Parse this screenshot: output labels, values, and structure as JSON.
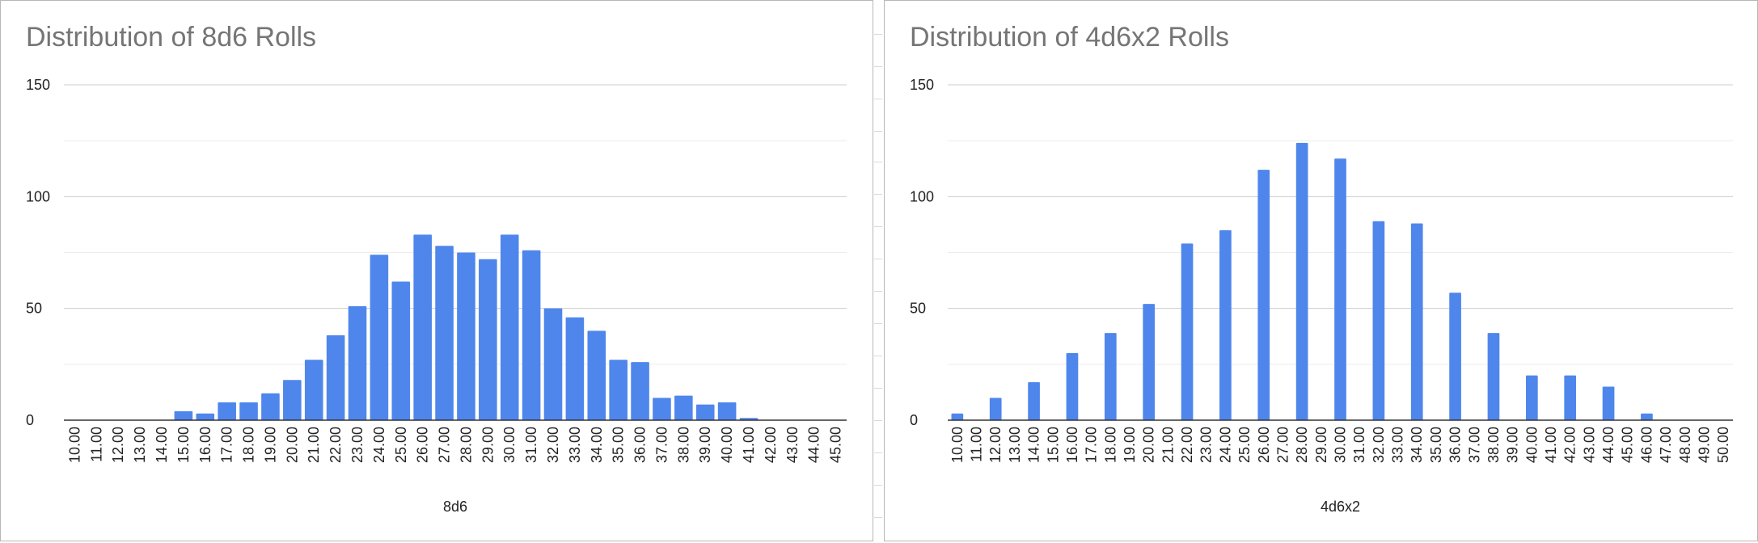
{
  "chart_data": [
    {
      "type": "bar",
      "title": "Distribution of 8d6 Rolls",
      "xlabel": "8d6",
      "ylabel": "",
      "ylim": [
        0,
        150
      ],
      "y_major_ticks": [
        "0",
        "50",
        "100",
        "150"
      ],
      "y_minor_gridlines": [
        25,
        75,
        125
      ],
      "grid": true,
      "legend": "none",
      "bar_color": "#4f86ec",
      "categories": [
        "10.00",
        "11.00",
        "12.00",
        "13.00",
        "14.00",
        "15.00",
        "16.00",
        "17.00",
        "18.00",
        "19.00",
        "20.00",
        "21.00",
        "22.00",
        "23.00",
        "24.00",
        "25.00",
        "26.00",
        "27.00",
        "28.00",
        "29.00",
        "30.00",
        "31.00",
        "32.00",
        "33.00",
        "34.00",
        "35.00",
        "36.00",
        "37.00",
        "38.00",
        "39.00",
        "40.00",
        "41.00",
        "42.00",
        "43.00",
        "44.00",
        "45.00"
      ],
      "values": [
        0,
        0,
        0,
        0,
        0,
        4,
        3,
        8,
        8,
        12,
        18,
        27,
        38,
        51,
        74,
        62,
        83,
        78,
        75,
        72,
        83,
        76,
        50,
        46,
        40,
        27,
        26,
        10,
        11,
        7,
        8,
        1,
        0,
        0,
        0,
        0
      ]
    },
    {
      "type": "bar",
      "title": "Distribution of 4d6x2 Rolls",
      "xlabel": "4d6x2",
      "ylabel": "",
      "ylim": [
        0,
        150
      ],
      "y_major_ticks": [
        "0",
        "50",
        "100",
        "150"
      ],
      "y_minor_gridlines": [
        25,
        75,
        125
      ],
      "grid": true,
      "legend": "none",
      "bar_color": "#4f86ec",
      "categories": [
        "10.00",
        "11.00",
        "12.00",
        "13.00",
        "14.00",
        "15.00",
        "16.00",
        "17.00",
        "18.00",
        "19.00",
        "20.00",
        "21.00",
        "22.00",
        "23.00",
        "24.00",
        "25.00",
        "26.00",
        "27.00",
        "28.00",
        "29.00",
        "30.00",
        "31.00",
        "32.00",
        "33.00",
        "34.00",
        "35.00",
        "36.00",
        "37.00",
        "38.00",
        "39.00",
        "40.00",
        "41.00",
        "42.00",
        "43.00",
        "44.00",
        "45.00",
        "46.00",
        "47.00",
        "48.00",
        "49.00",
        "50.00"
      ],
      "values": [
        3,
        0,
        10,
        0,
        17,
        0,
        30,
        0,
        39,
        0,
        52,
        0,
        79,
        0,
        85,
        0,
        112,
        0,
        124,
        0,
        117,
        0,
        89,
        0,
        88,
        0,
        57,
        0,
        39,
        0,
        20,
        0,
        20,
        0,
        15,
        0,
        3,
        0,
        0,
        0,
        0
      ]
    }
  ]
}
